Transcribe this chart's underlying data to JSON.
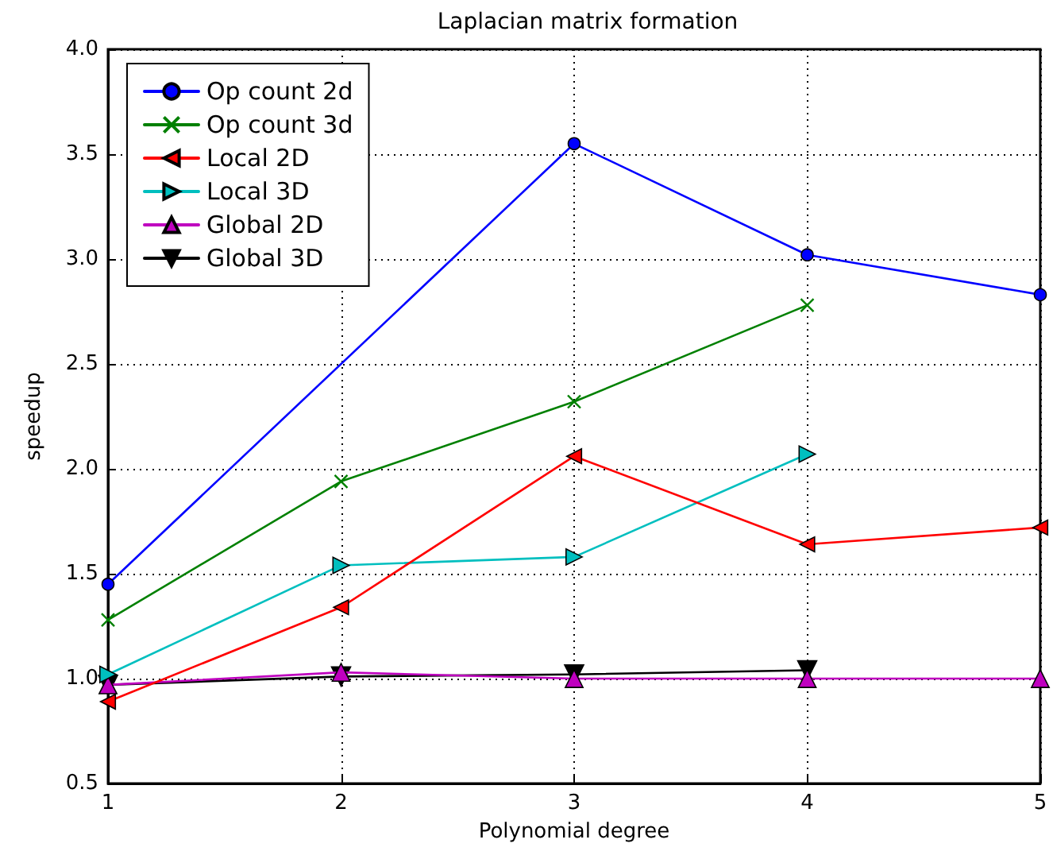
{
  "chart_data": {
    "type": "line",
    "title": "Laplacian matrix formation",
    "xlabel": "Polynomial degree",
    "ylabel": "speedup",
    "xlim": [
      1,
      5
    ],
    "xticks": [
      1,
      2,
      3,
      4,
      5
    ],
    "ylim": [
      0.5,
      4.0
    ],
    "yticks": [
      {
        "value": 0.5,
        "label": "0.5"
      },
      {
        "value": 1.0,
        "label": "1.0"
      },
      {
        "value": 1.5,
        "label": "1.5"
      },
      {
        "value": 2.0,
        "label": "2.0"
      },
      {
        "value": 2.5,
        "label": "2.5"
      },
      {
        "value": 3.0,
        "label": "3.0"
      },
      {
        "value": 3.5,
        "label": "3.5"
      },
      {
        "value": 4.0,
        "label": "4.0"
      }
    ],
    "grid": true,
    "legend": "top left",
    "line_style": "solid",
    "series": [
      {
        "name": "Op count 2d",
        "color": "#0000ff",
        "marker": "circle",
        "x": [
          1,
          2,
          3,
          4,
          5
        ],
        "values": [
          1.45,
          null,
          3.55,
          3.02,
          2.83
        ]
      },
      {
        "name": "Op count 3d",
        "color": "#008000",
        "marker": "cross",
        "x": [
          1,
          2,
          3,
          4
        ],
        "values": [
          1.28,
          1.94,
          2.32,
          2.78
        ]
      },
      {
        "name": "Local 2D",
        "color": "#ff0000",
        "marker": "triangle-left",
        "x": [
          1,
          2,
          3,
          4,
          5
        ],
        "values": [
          0.89,
          1.34,
          2.06,
          1.64,
          1.72
        ]
      },
      {
        "name": "Local 3D",
        "color": "#00bfbf",
        "marker": "triangle-right",
        "x": [
          1,
          2,
          3,
          4
        ],
        "values": [
          1.02,
          1.54,
          1.58,
          2.07
        ]
      },
      {
        "name": "Global 2D",
        "color": "#bf00bf",
        "marker": "triangle",
        "x": [
          1,
          2,
          3,
          4,
          5
        ],
        "values": [
          0.97,
          1.03,
          1.0,
          1.0,
          1.0
        ]
      },
      {
        "name": "Global 3D",
        "color": "#000000",
        "marker": "triangle-down",
        "x": [
          1,
          2,
          3,
          4
        ],
        "values": [
          0.97,
          1.01,
          1.02,
          1.04
        ]
      }
    ]
  }
}
